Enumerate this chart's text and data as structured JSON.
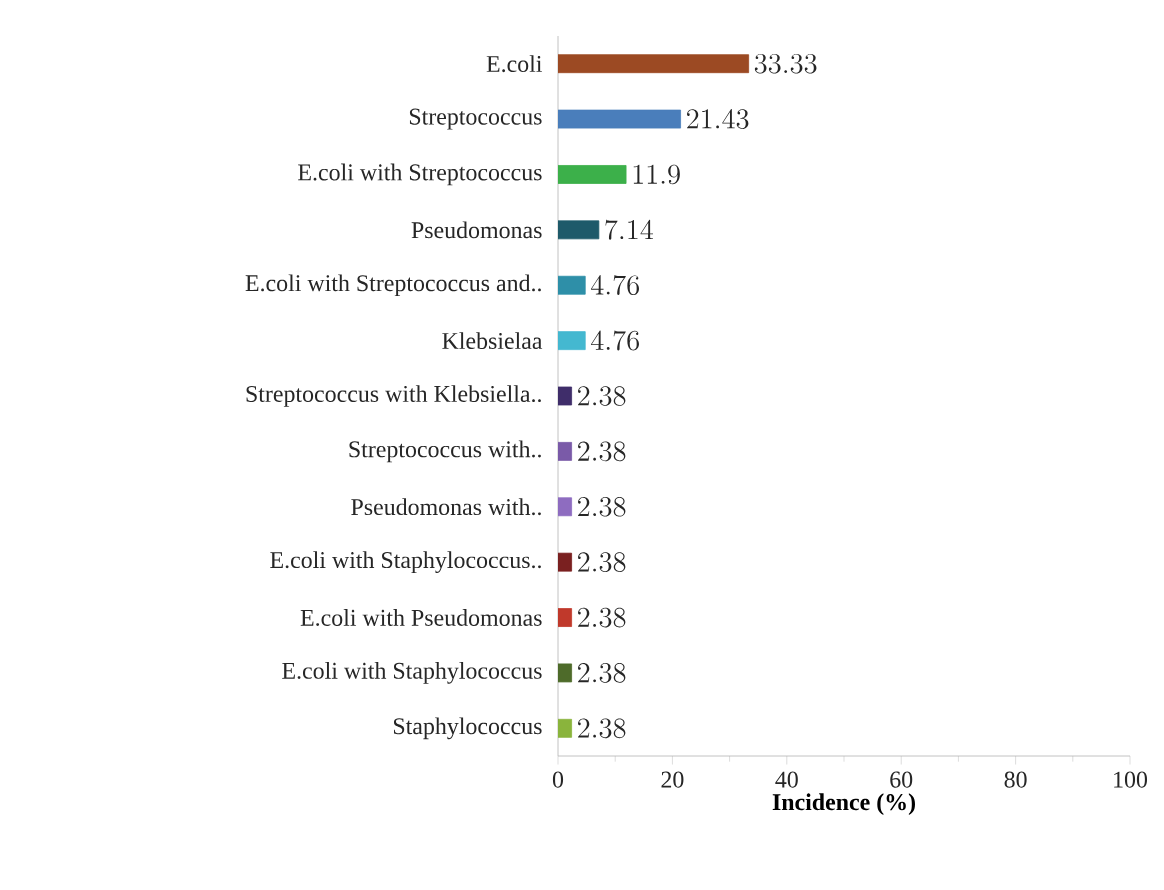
{
  "chart_data": {
    "type": "bar",
    "orientation": "horizontal",
    "xlabel": "Incidence (%)",
    "categories": [
      "E.coli",
      "Streptococcus",
      "E.coli with Streptococcus",
      "Pseudomonas",
      "E.coli with Streptococcus and..",
      "Klebsielaa",
      "Streptococcus with Klebsiella..",
      "Streptococcus with..",
      "Pseudomonas with..",
      "E.coli with Staphylococcus..",
      "E.coli with Pseudomonas",
      "E.coli with Staphylococcus",
      "Staphylococcus"
    ],
    "values": [
      33.33,
      21.43,
      11.9,
      7.14,
      4.76,
      4.76,
      2.38,
      2.38,
      2.38,
      2.38,
      2.38,
      2.38,
      2.38
    ],
    "colors": [
      "#9c4a23",
      "#4a7ebb",
      "#3cb04a",
      "#1e5a6a",
      "#2e8fa8",
      "#44b8d0",
      "#3f2d6a",
      "#7a5aa8",
      "#8e6cc0",
      "#7a2020",
      "#c0392b",
      "#4e6b2a",
      "#8ab43c"
    ],
    "xlim": [
      0,
      100
    ],
    "xticks": [
      0,
      20,
      40,
      60,
      80,
      100
    ],
    "data_labels": true
  }
}
